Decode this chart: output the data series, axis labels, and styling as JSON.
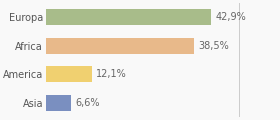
{
  "categories": [
    "Europa",
    "Africa",
    "America",
    "Asia"
  ],
  "values": [
    42.9,
    38.5,
    12.1,
    6.6
  ],
  "labels": [
    "42,9%",
    "38,5%",
    "12,1%",
    "6,6%"
  ],
  "bar_colors": [
    "#a8bc8a",
    "#e8b98a",
    "#f0d070",
    "#7a8fc0"
  ],
  "background_color": "#f9f9f9",
  "xlim": [
    0,
    60
  ],
  "bar_height": 0.55,
  "label_fontsize": 7.0,
  "category_fontsize": 7.0,
  "vline_x": 50,
  "vline_color": "#cccccc"
}
